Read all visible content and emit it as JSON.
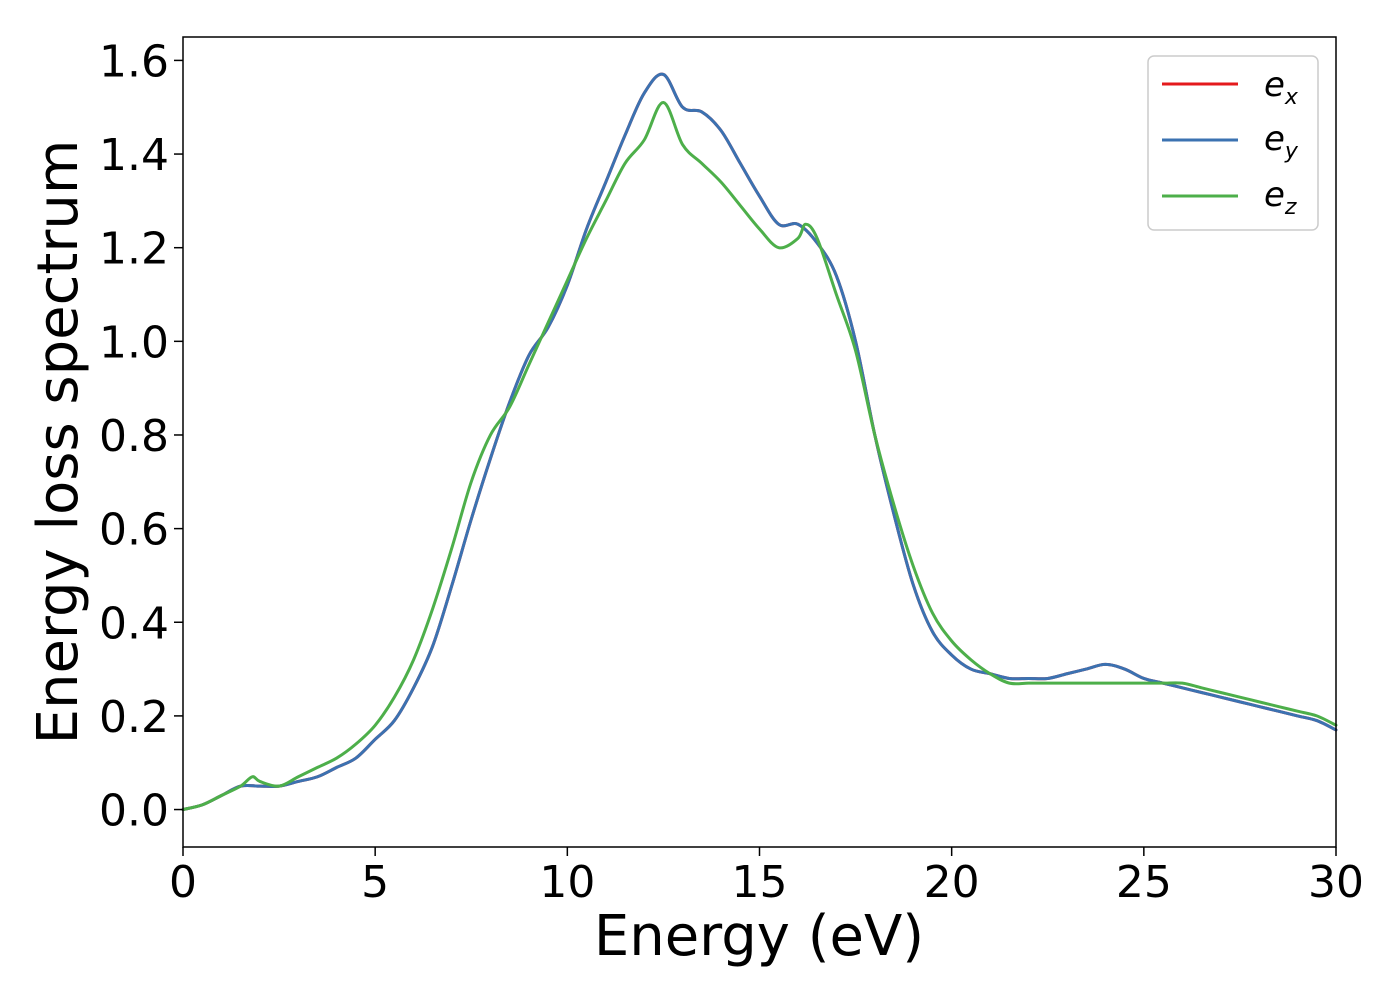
{
  "chart_data": {
    "type": "line",
    "title": "",
    "xlabel": "Energy (eV)",
    "ylabel": "Energy loss spectrum",
    "xlim": [
      0,
      30
    ],
    "ylim": [
      -0.08,
      1.65
    ],
    "xticks": [
      0,
      5,
      10,
      15,
      20,
      25,
      30
    ],
    "xtick_labels": [
      "0",
      "5",
      "10",
      "15",
      "20",
      "25",
      "30"
    ],
    "yticks": [
      0.0,
      0.2,
      0.4,
      0.6,
      0.8,
      1.0,
      1.2,
      1.4,
      1.6
    ],
    "ytick_labels": [
      "0.0",
      "0.2",
      "0.4",
      "0.6",
      "0.8",
      "1.0",
      "1.2",
      "1.4",
      "1.6"
    ],
    "grid": false,
    "legend_position": "top-right",
    "series": [
      {
        "name": "e",
        "subscript": "x",
        "color": "#e41a1c",
        "x": [
          0,
          0.5,
          1.0,
          1.5,
          2.0,
          2.5,
          3.0,
          3.5,
          4.0,
          4.5,
          5.0,
          5.5,
          6.0,
          6.5,
          7.0,
          7.5,
          8.0,
          8.5,
          9.0,
          9.5,
          10.0,
          10.5,
          11.0,
          11.5,
          12.0,
          12.5,
          13.0,
          13.5,
          14.0,
          14.5,
          15.0,
          15.5,
          16.0,
          16.5,
          17.0,
          17.5,
          18.0,
          18.5,
          19.0,
          19.5,
          20.0,
          20.5,
          21.0,
          21.5,
          22.0,
          22.5,
          23.0,
          23.5,
          24.0,
          24.5,
          25.0,
          25.5,
          26.0,
          26.5,
          27.0,
          27.5,
          28.0,
          28.5,
          29.0,
          29.5,
          30.0
        ],
        "y": [
          0.0,
          0.01,
          0.03,
          0.05,
          0.05,
          0.05,
          0.06,
          0.07,
          0.09,
          0.11,
          0.15,
          0.19,
          0.26,
          0.35,
          0.48,
          0.62,
          0.75,
          0.87,
          0.97,
          1.03,
          1.12,
          1.24,
          1.34,
          1.44,
          1.53,
          1.57,
          1.5,
          1.49,
          1.45,
          1.38,
          1.31,
          1.25,
          1.25,
          1.21,
          1.14,
          1.0,
          0.8,
          0.63,
          0.48,
          0.38,
          0.33,
          0.3,
          0.29,
          0.28,
          0.28,
          0.28,
          0.29,
          0.3,
          0.31,
          0.3,
          0.28,
          0.27,
          0.26,
          0.25,
          0.24,
          0.23,
          0.22,
          0.21,
          0.2,
          0.19,
          0.17
        ]
      },
      {
        "name": "e",
        "subscript": "y",
        "color": "#3b72b1",
        "x": [
          0,
          0.5,
          1.0,
          1.5,
          2.0,
          2.5,
          3.0,
          3.5,
          4.0,
          4.5,
          5.0,
          5.5,
          6.0,
          6.5,
          7.0,
          7.5,
          8.0,
          8.5,
          9.0,
          9.5,
          10.0,
          10.5,
          11.0,
          11.5,
          12.0,
          12.5,
          13.0,
          13.5,
          14.0,
          14.5,
          15.0,
          15.5,
          16.0,
          16.5,
          17.0,
          17.5,
          18.0,
          18.5,
          19.0,
          19.5,
          20.0,
          20.5,
          21.0,
          21.5,
          22.0,
          22.5,
          23.0,
          23.5,
          24.0,
          24.5,
          25.0,
          25.5,
          26.0,
          26.5,
          27.0,
          27.5,
          28.0,
          28.5,
          29.0,
          29.5,
          30.0
        ],
        "y": [
          0.0,
          0.01,
          0.03,
          0.05,
          0.05,
          0.05,
          0.06,
          0.07,
          0.09,
          0.11,
          0.15,
          0.19,
          0.26,
          0.35,
          0.48,
          0.62,
          0.75,
          0.87,
          0.97,
          1.03,
          1.12,
          1.24,
          1.34,
          1.44,
          1.53,
          1.57,
          1.5,
          1.49,
          1.45,
          1.38,
          1.31,
          1.25,
          1.25,
          1.21,
          1.14,
          1.0,
          0.8,
          0.63,
          0.48,
          0.38,
          0.33,
          0.3,
          0.29,
          0.28,
          0.28,
          0.28,
          0.29,
          0.3,
          0.31,
          0.3,
          0.28,
          0.27,
          0.26,
          0.25,
          0.24,
          0.23,
          0.22,
          0.21,
          0.2,
          0.19,
          0.17
        ]
      },
      {
        "name": "e",
        "subscript": "z",
        "color": "#4daf4a",
        "x": [
          0,
          0.5,
          1.0,
          1.5,
          1.8,
          2.0,
          2.5,
          3.0,
          3.5,
          4.0,
          4.5,
          5.0,
          5.5,
          6.0,
          6.5,
          7.0,
          7.5,
          8.0,
          8.5,
          9.0,
          9.5,
          10.0,
          10.5,
          11.0,
          11.5,
          12.0,
          12.5,
          13.0,
          13.5,
          14.0,
          14.5,
          15.0,
          15.5,
          16.0,
          16.2,
          16.5,
          17.0,
          17.5,
          18.0,
          18.5,
          19.0,
          19.5,
          20.0,
          20.5,
          21.0,
          21.5,
          22.0,
          22.5,
          23.0,
          23.5,
          24.0,
          24.5,
          25.0,
          25.5,
          26.0,
          26.5,
          27.0,
          27.5,
          28.0,
          28.5,
          29.0,
          29.5,
          30.0
        ],
        "y": [
          0.0,
          0.01,
          0.03,
          0.05,
          0.07,
          0.06,
          0.05,
          0.07,
          0.09,
          0.11,
          0.14,
          0.18,
          0.24,
          0.32,
          0.43,
          0.56,
          0.7,
          0.8,
          0.86,
          0.95,
          1.04,
          1.13,
          1.22,
          1.3,
          1.38,
          1.43,
          1.51,
          1.42,
          1.38,
          1.34,
          1.29,
          1.24,
          1.2,
          1.22,
          1.25,
          1.22,
          1.1,
          0.98,
          0.8,
          0.65,
          0.52,
          0.42,
          0.36,
          0.32,
          0.29,
          0.27,
          0.27,
          0.27,
          0.27,
          0.27,
          0.27,
          0.27,
          0.27,
          0.27,
          0.27,
          0.26,
          0.25,
          0.24,
          0.23,
          0.22,
          0.21,
          0.2,
          0.18
        ]
      }
    ]
  }
}
